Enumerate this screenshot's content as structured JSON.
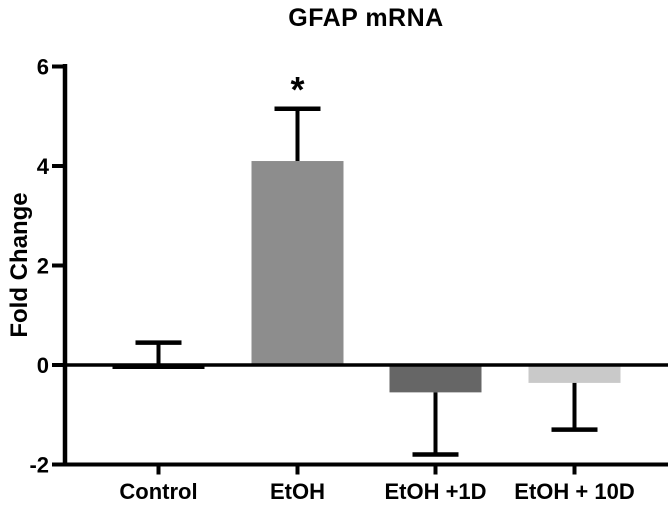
{
  "figure": {
    "title": "GFAP mRNA",
    "y_axis_label": "Fold Change"
  },
  "chart_data": {
    "type": "bar",
    "title": "GFAP mRNA",
    "xlabel": "",
    "ylabel": "Fold Change",
    "categories": [
      "Control",
      "EtOH",
      "EtOH +1D",
      "EtOH + 10D"
    ],
    "values": [
      -0.08,
      4.1,
      -0.55,
      -0.36
    ],
    "error_bar_tips": [
      0.45,
      5.15,
      -1.8,
      -1.3
    ],
    "error_bar_direction": [
      "up",
      "up",
      "down",
      "down"
    ],
    "bar_colors": [
      "#000000",
      "#8d8d8d",
      "#666666",
      "#c9c9c9"
    ],
    "ylim": [
      -2,
      6
    ],
    "yticks": [
      6,
      4,
      2,
      0,
      -2
    ],
    "baseline": 0,
    "grid": false,
    "legend": "none",
    "annotations": [
      {
        "text": "*",
        "category": "EtOH",
        "category_index": 1
      }
    ]
  },
  "colors": {
    "axis": "#000000",
    "text": "#000000",
    "background": "#ffffff"
  }
}
